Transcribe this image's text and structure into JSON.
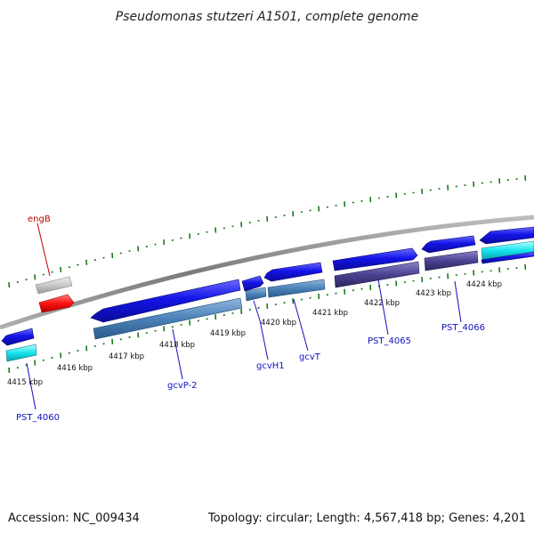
{
  "title": "Pseudomonas stutzeri A1501, complete genome",
  "footer": {
    "accession": "Accession: NC_009434",
    "topology": "Topology: circular; Length: 4,567,418 bp; Genes: 4,201"
  },
  "colors": {
    "backbone": "#8c8c8c",
    "tick": "#1a7a1a",
    "cds_forward": "#1010e0",
    "cds_steel": "#4a82b8",
    "cds_purple": "#4a4290",
    "cyan": "#16e4ee",
    "grey": "#c8c8c8",
    "red": "#ff1010",
    "label_blue": "#1010c0",
    "label_red": "#c00000"
  },
  "scale_labels": [
    "4415 kbp",
    "4416 kbp",
    "4417 kbp",
    "4418 kbp",
    "4419 kbp",
    "4420 kbp",
    "4421 kbp",
    "4422 kbp",
    "4423 kbp",
    "4424 kbp"
  ],
  "gene_labels": {
    "engB": "engB",
    "gcvP2": "gcvP-2",
    "gcvH1": "gcvH1",
    "gcvT": "gcvT",
    "pst4060": "PST_4060",
    "pst4065": "PST_4065",
    "pst4066": "PST_4066"
  }
}
